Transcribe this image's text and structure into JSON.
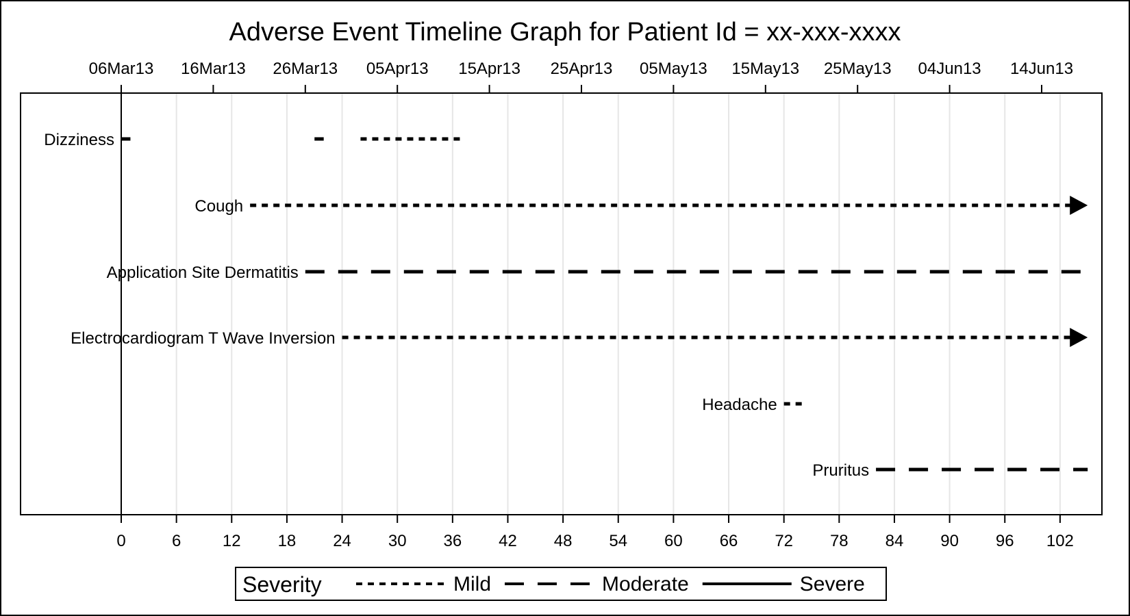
{
  "chart_data": {
    "type": "timeline",
    "title": "Adverse Event Timeline Graph for Patient Id = xx-xxx-xxxx",
    "xlabel": "",
    "ylabel": "",
    "xlim": [
      -11,
      106
    ],
    "x_ticks": [
      0,
      6,
      12,
      18,
      24,
      30,
      36,
      42,
      48,
      54,
      60,
      66,
      72,
      78,
      84,
      90,
      96,
      102
    ],
    "x_tick_labels": [
      "0",
      "6",
      "12",
      "18",
      "24",
      "30",
      "36",
      "42",
      "48",
      "54",
      "60",
      "66",
      "72",
      "78",
      "84",
      "90",
      "96",
      "102"
    ],
    "date_axis": {
      "position": "top",
      "ticks": [
        0,
        10,
        20,
        30,
        40,
        50,
        60,
        70,
        80,
        90,
        100
      ],
      "tick_labels": [
        "06Mar13",
        "16Mar13",
        "26Mar13",
        "05Apr13",
        "15Apr13",
        "25Apr13",
        "05May13",
        "15May13",
        "25May13",
        "04Jun13",
        "14Jun13"
      ]
    },
    "reference_line": 0,
    "grid": true,
    "categories": [
      "Dizziness",
      "Cough",
      "Application Site Dermatitis",
      "Electrocardiogram T Wave Inversion",
      "Headache",
      "Pruritus"
    ],
    "events": [
      {
        "name": "Dizziness",
        "label_x": 0,
        "segments": [
          {
            "start": 0,
            "end": 1,
            "severity": "Moderate",
            "ongoing": false
          },
          {
            "start": 21,
            "end": 22,
            "severity": "Moderate",
            "ongoing": false
          },
          {
            "start": 26,
            "end": 37,
            "severity": "Mild",
            "ongoing": false
          }
        ]
      },
      {
        "name": "Cough",
        "label_x": 14,
        "segments": [
          {
            "start": 14,
            "end": 105,
            "severity": "Mild",
            "ongoing": true
          }
        ]
      },
      {
        "name": "Application Site Dermatitis",
        "label_x": 20,
        "segments": [
          {
            "start": 20,
            "end": 105,
            "severity": "Moderate",
            "ongoing": false
          }
        ]
      },
      {
        "name": "Electrocardiogram T Wave Inversion",
        "label_x": 24,
        "segments": [
          {
            "start": 24,
            "end": 105,
            "severity": "Mild",
            "ongoing": true
          }
        ]
      },
      {
        "name": "Headache",
        "label_x": 72,
        "segments": [
          {
            "start": 72,
            "end": 74,
            "severity": "Mild",
            "ongoing": false
          }
        ]
      },
      {
        "name": "Pruritus",
        "label_x": 82,
        "segments": [
          {
            "start": 82,
            "end": 105,
            "severity": "Moderate",
            "ongoing": false
          }
        ]
      }
    ],
    "legend": {
      "title": "Severity",
      "placement": "bottom",
      "items": [
        {
          "label": "Mild",
          "style": "dotted"
        },
        {
          "label": "Moderate",
          "style": "dashed"
        },
        {
          "label": "Severe",
          "style": "solid"
        }
      ]
    },
    "colors": {
      "line": "#000000",
      "grid": "#e6e6e6",
      "background": "#ffffff"
    }
  }
}
